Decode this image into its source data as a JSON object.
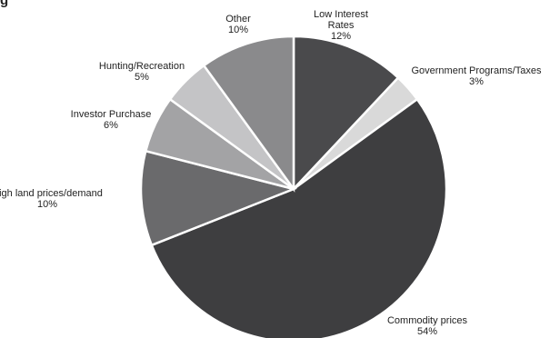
{
  "chart_data": {
    "type": "pie",
    "start_angle_deg": 0,
    "direction": "clockwise",
    "slices": [
      {
        "label_lines": [
          "Low Interest",
          "Rates"
        ],
        "pct_label": "12%",
        "value": 12,
        "color": "#4a4a4c"
      },
      {
        "label_lines": [
          "Government Programs/Taxes"
        ],
        "pct_label": "3%",
        "value": 3,
        "color": "#d9d9d9"
      },
      {
        "label_lines": [
          "Commodity prices"
        ],
        "pct_label": "54%",
        "value": 54,
        "color": "#3e3e40"
      },
      {
        "label_lines": [
          "High land prices/demand"
        ],
        "pct_label": "10%",
        "value": 10,
        "color": "#6a6a6c"
      },
      {
        "label_lines": [
          "Investor Purchase"
        ],
        "pct_label": "6%",
        "value": 6,
        "color": "#a3a3a5"
      },
      {
        "label_lines": [
          "Hunting/Recreation"
        ],
        "pct_label": "5%",
        "value": 5,
        "color": "#c4c4c6"
      },
      {
        "label_lines": [
          "Other"
        ],
        "pct_label": "10%",
        "value": 10,
        "color": "#8a8a8c"
      }
    ],
    "header_fragment": "g"
  }
}
